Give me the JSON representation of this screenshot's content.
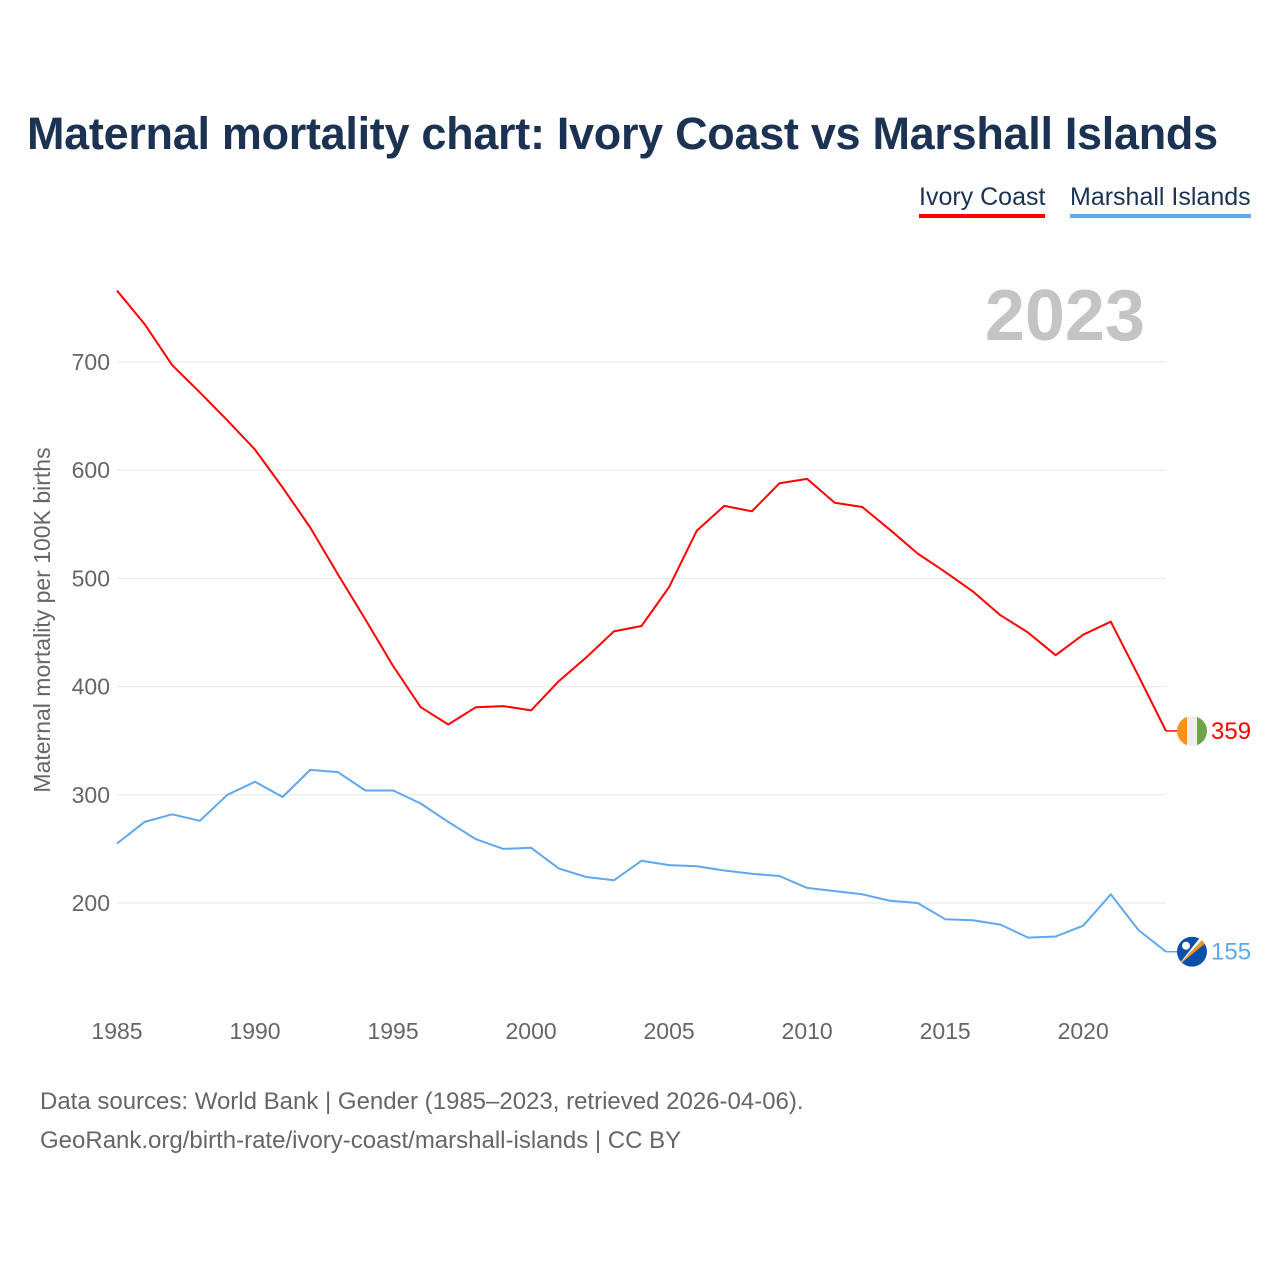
{
  "chart_data": {
    "type": "line",
    "title": "Maternal mortality chart: Ivory Coast vs Marshall Islands",
    "ylabel": "Maternal mortality per 100K births",
    "xlabel": "",
    "year_label": "2023",
    "x": [
      1985,
      1986,
      1987,
      1988,
      1989,
      1990,
      1991,
      1992,
      1993,
      1994,
      1995,
      1996,
      1997,
      1998,
      1999,
      2000,
      2001,
      2002,
      2003,
      2004,
      2005,
      2006,
      2007,
      2008,
      2009,
      2010,
      2011,
      2012,
      2013,
      2014,
      2015,
      2016,
      2017,
      2018,
      2019,
      2020,
      2021,
      2022,
      2023
    ],
    "xlim": [
      1985,
      2023
    ],
    "ylim": [
      100,
      780
    ],
    "xticks": [
      "1985",
      "1990",
      "1995",
      "2000",
      "2005",
      "2010",
      "2015",
      "2020"
    ],
    "yticks": [
      "200",
      "300",
      "400",
      "500",
      "600",
      "700"
    ],
    "grid": true,
    "legend": "top-right",
    "series": [
      {
        "name": "Ivory Coast",
        "color": "#ff0000",
        "end_label": "359",
        "flag": "ivory-coast-flag",
        "values": [
          766,
          735,
          697,
          672,
          646,
          619,
          584,
          547,
          504,
          462,
          419,
          381,
          365,
          381,
          382,
          378,
          405,
          427,
          451,
          456,
          492,
          544,
          567,
          562,
          588,
          592,
          570,
          566,
          545,
          523,
          506,
          488,
          466,
          450,
          429,
          448,
          460,
          410,
          359
        ]
      },
      {
        "name": "Marshall Islands",
        "color": "#5fa8ef",
        "end_label": "155",
        "flag": "marshall-islands-flag",
        "values": [
          255,
          275,
          282,
          276,
          300,
          312,
          298,
          323,
          321,
          304,
          304,
          292,
          275,
          259,
          250,
          251,
          232,
          224,
          221,
          239,
          235,
          234,
          230,
          227,
          225,
          214,
          211,
          208,
          202,
          200,
          185,
          184,
          180,
          168,
          169,
          179,
          208,
          175,
          155
        ]
      }
    ]
  },
  "footer": {
    "line1": "Data sources: World Bank | Gender (1985–2023, retrieved 2026-04-06).",
    "line2": "GeoRank.org/birth-rate/ivory-coast/marshall-islands | CC BY"
  }
}
